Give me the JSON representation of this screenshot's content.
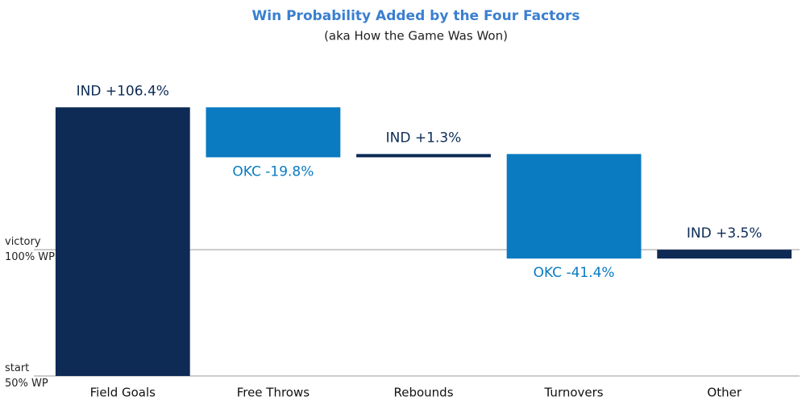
{
  "chart_data": {
    "type": "waterfall",
    "title": "Win Probability Added by the Four Factors",
    "subtitle": "(aka How the Game Was Won)",
    "categories": [
      "Field Goals",
      "Free Throws",
      "Rebounds",
      "Turnovers",
      "Other"
    ],
    "values": [
      106.4,
      -19.8,
      1.3,
      -41.4,
      3.5
    ],
    "value_labels": [
      "IND +106.4%",
      "OKC -19.8%",
      "IND +1.3%",
      "OKC -41.4%",
      "IND +3.5%"
    ],
    "color_increase": "#0d2b55",
    "color_decrease": "#0a7bc1",
    "ylim": [
      0,
      110
    ],
    "yticks": [
      {
        "value": 0,
        "label": "start\n50% WP"
      },
      {
        "value": 50,
        "label": "victory\n100% WP"
      }
    ]
  }
}
